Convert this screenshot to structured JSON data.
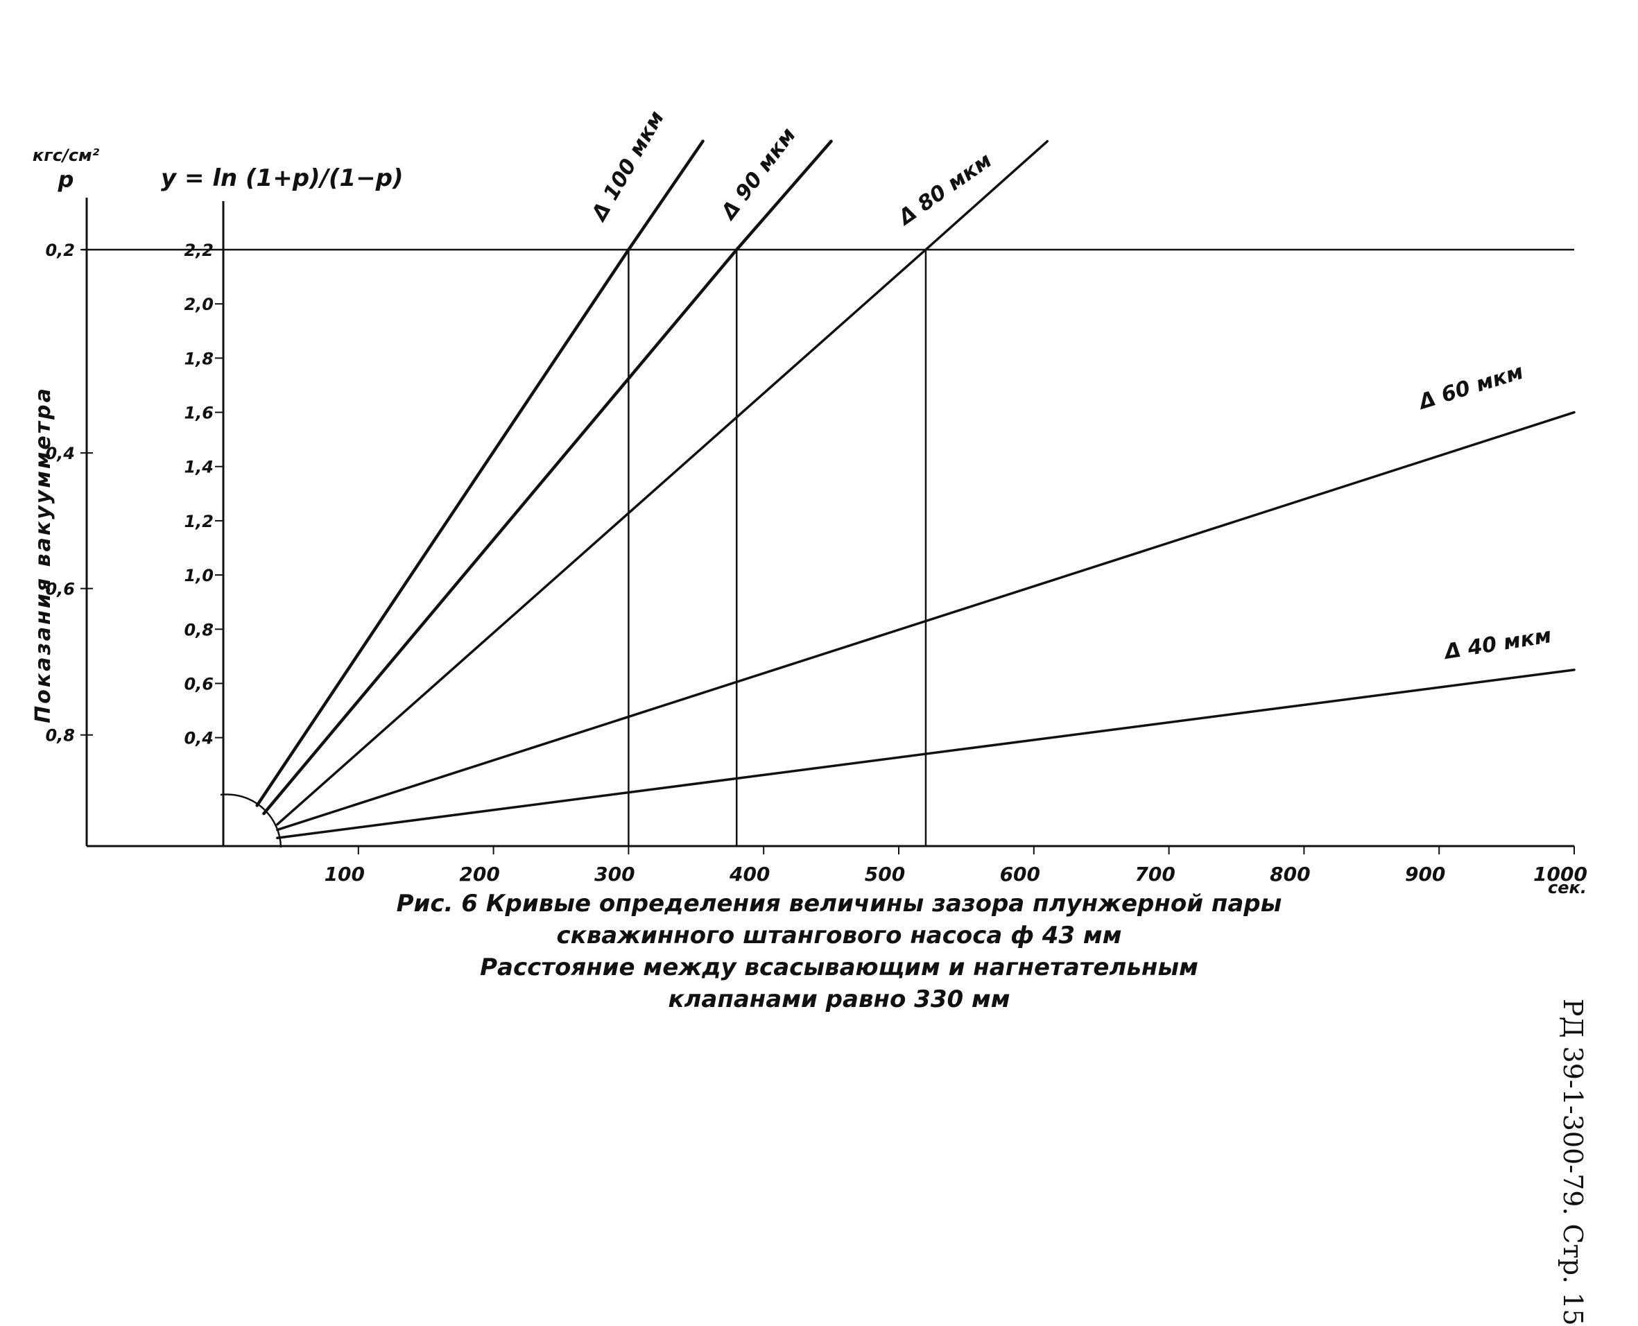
{
  "chart_data": {
    "type": "line",
    "x_label": "сек.",
    "x_ticks": [
      "100",
      "200",
      "300",
      "400",
      "500",
      "600",
      "700",
      "800",
      "900",
      "1000"
    ],
    "xlim": [
      0,
      1000
    ],
    "y_label": "y = ln (1+p)/(1−p)",
    "y_ticks": [
      "0,4",
      "0,6",
      "0,8",
      "1,0",
      "1,2",
      "1,4",
      "1,6",
      "1,8",
      "2,0",
      "2,2"
    ],
    "ylim": [
      0,
      2.2
    ],
    "p_axis_label": "Показания вакуумметра",
    "p_axis_unit": "кгс/см²",
    "p_axis_symbol": "p",
    "p_ticks": [
      "0,2",
      "0,4",
      "0,6",
      "0,8"
    ],
    "p_tick_y": [
      2.2,
      1.45,
      0.95,
      0.41
    ],
    "reference_y": 2.2,
    "reference_x": [
      300,
      380,
      520
    ],
    "series": [
      {
        "name": "Δ 100 мкм",
        "x": [
          25,
          300,
          355
        ],
        "y": [
          0.15,
          2.2,
          2.6
        ]
      },
      {
        "name": "Δ 90 мкм",
        "x": [
          30,
          380,
          450
        ],
        "y": [
          0.12,
          2.2,
          2.6
        ]
      },
      {
        "name": "Δ 80 мкм",
        "x": [
          40,
          520,
          610
        ],
        "y": [
          0.08,
          2.2,
          2.6
        ]
      },
      {
        "name": "Δ 60 мкм",
        "x": [
          40,
          1000
        ],
        "y": [
          0.06,
          1.6
        ]
      },
      {
        "name": "Δ 40 мкм",
        "x": [
          40,
          1000
        ],
        "y": [
          0.03,
          0.65
        ]
      }
    ],
    "grid": false,
    "legend": "none"
  },
  "caption": {
    "line1": "Рис. 6   Кривые определения величины зазора плунжерной пары",
    "line2": "скважинного штангового насоса ф 43 мм",
    "line3": "Расстояние между всасывающим и нагнетательным",
    "line4": "клапанами равно 330 мм"
  },
  "doc_code": "РД 39-1-300-79. Стр. 15"
}
